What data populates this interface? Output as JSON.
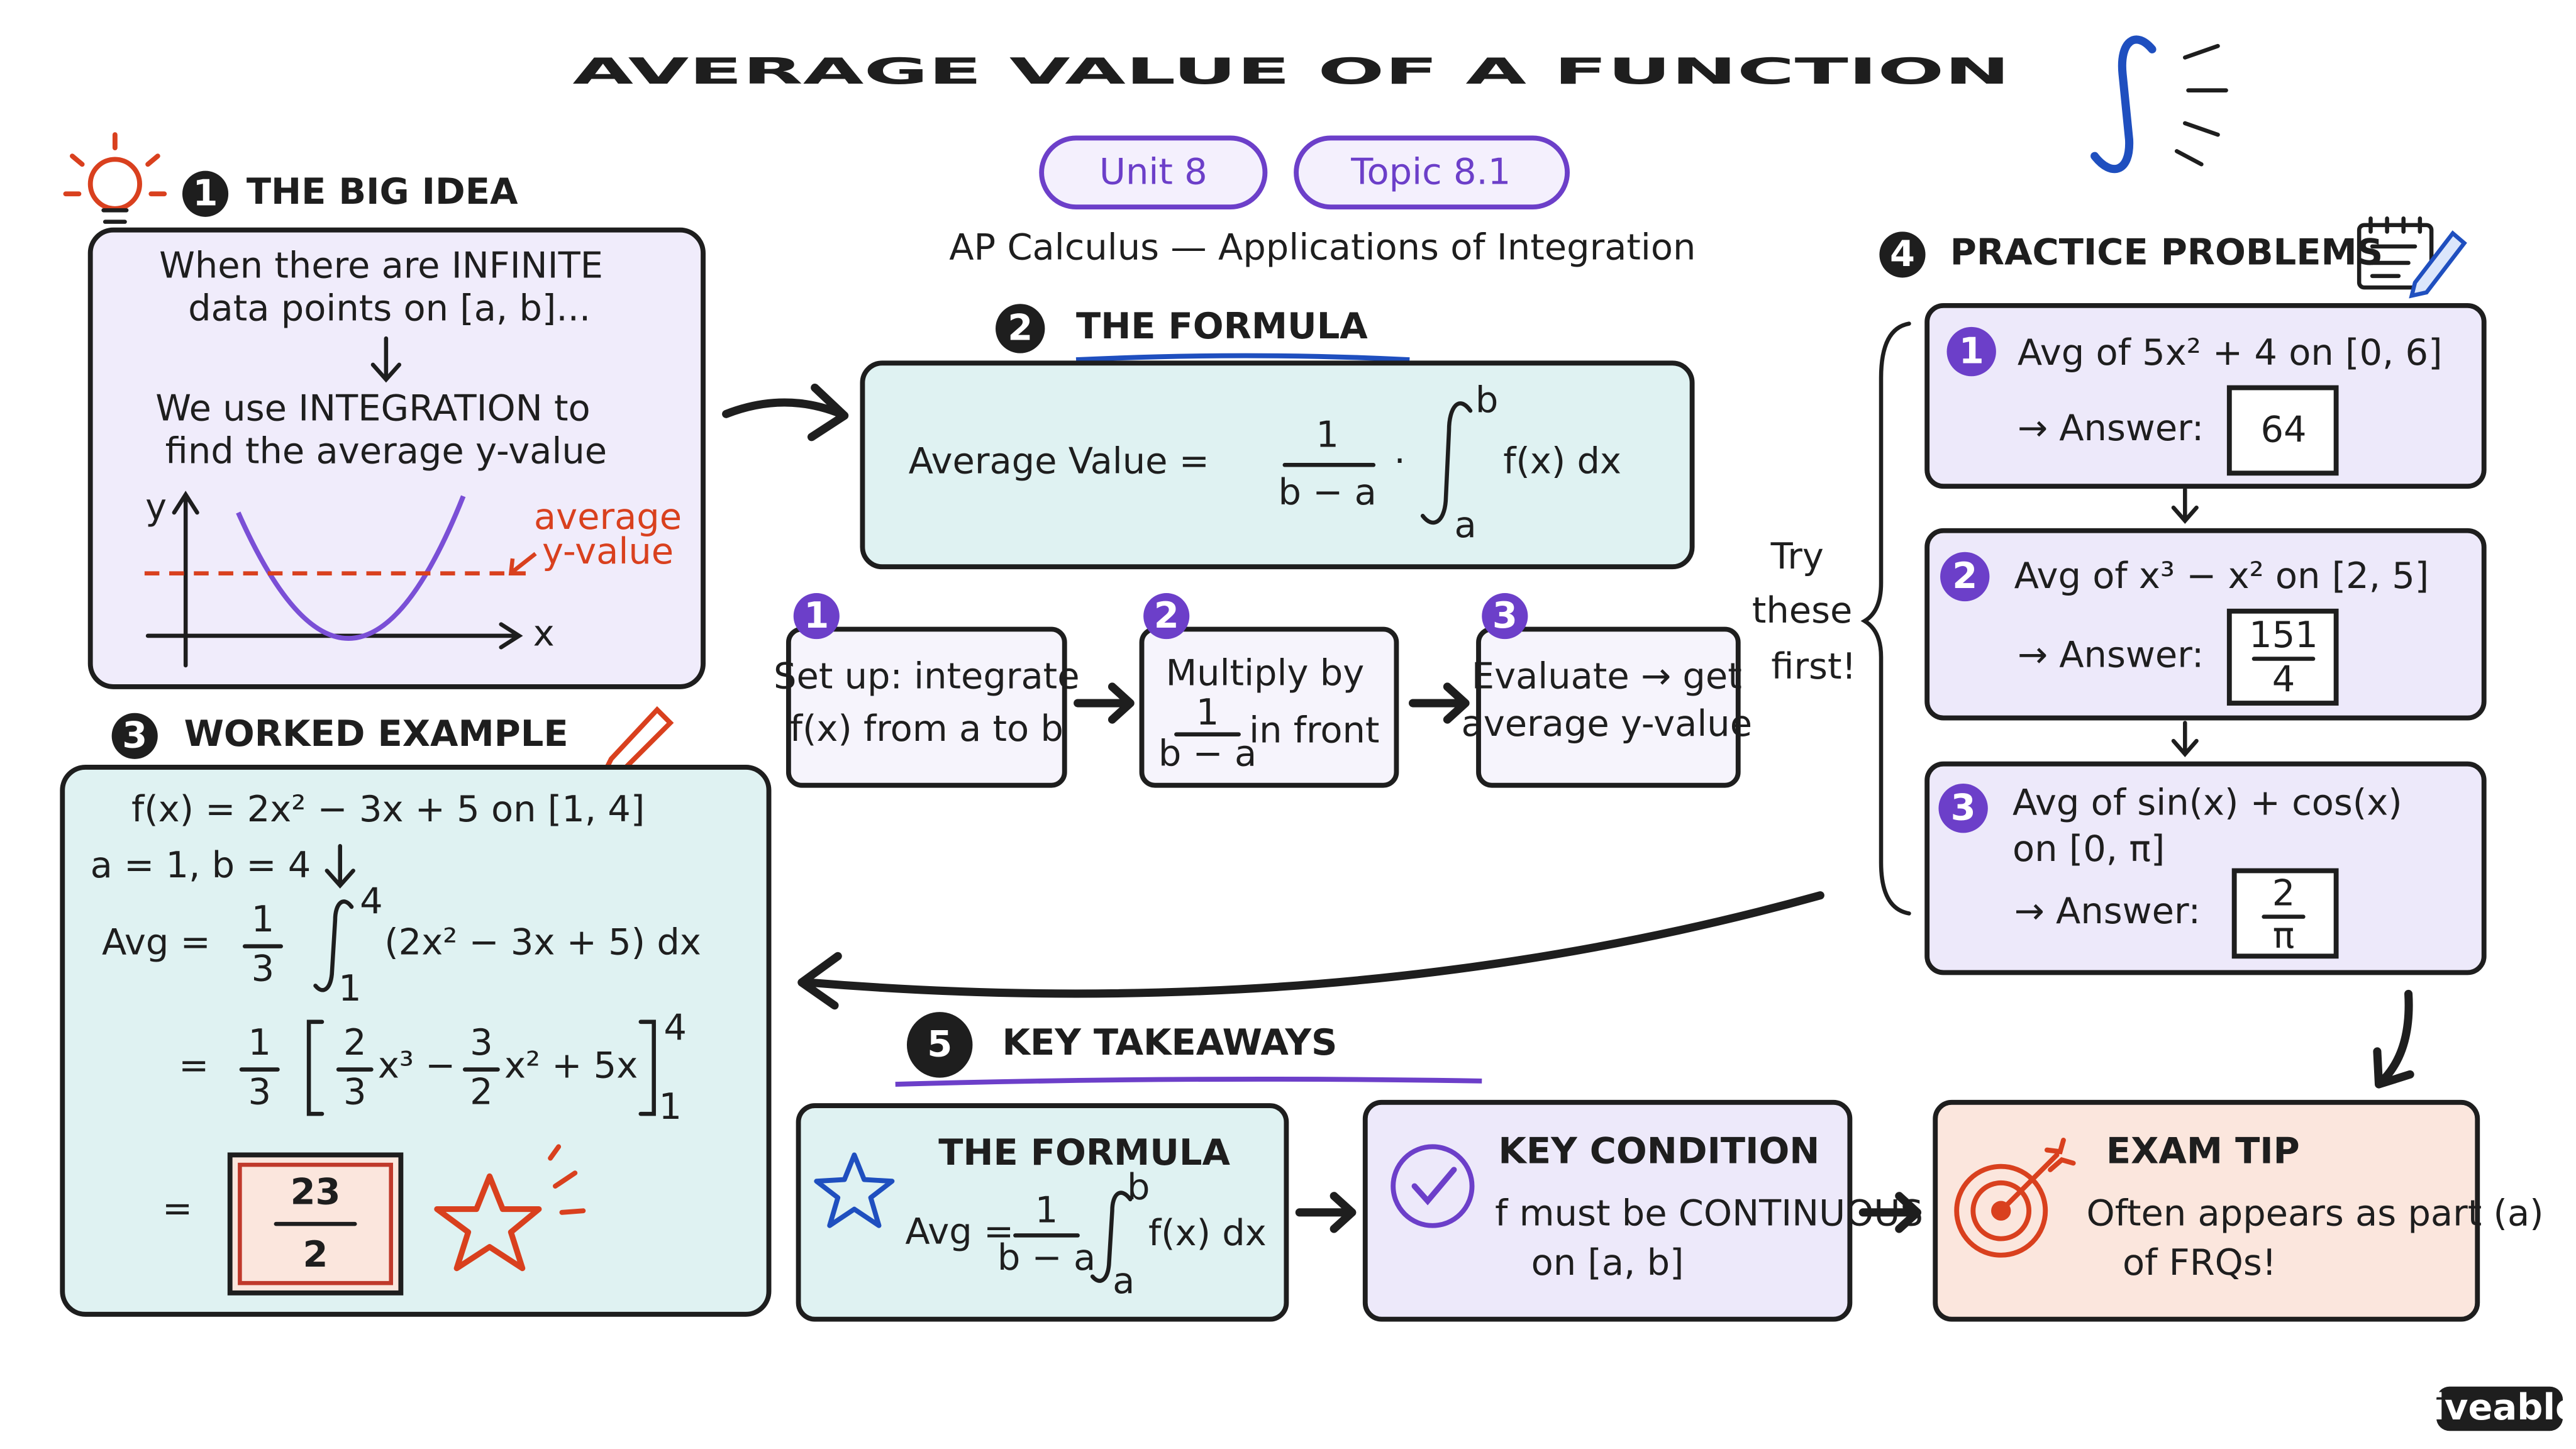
{
  "header": {
    "title": "AVERAGE VALUE OF A FUNCTION",
    "badges": [
      "Unit 8",
      "Topic 8.1"
    ],
    "subtitle": "AP Calculus — Applications of Integration"
  },
  "big_idea": {
    "number": "1",
    "heading": "THE BIG IDEA",
    "lines": [
      "When there are INFINITE",
      "data points on [a, b]...",
      "We use INTEGRATION to",
      "find the average y-value"
    ],
    "graph": {
      "y_label": "y",
      "x_label": "x",
      "annotation": [
        "average",
        "y-value"
      ]
    }
  },
  "formula": {
    "number": "2",
    "heading": "THE FORMULA",
    "lhs": "Average Value =",
    "frac_num": "1",
    "frac_den": "b − a",
    "dot": "·",
    "upper": "b",
    "lower": "a",
    "integrand": "f(x) dx"
  },
  "steps": [
    {
      "number": "1",
      "lines": [
        "Set up: integrate",
        "f(x) from a to b"
      ]
    },
    {
      "number": "2",
      "text": "Multiply by",
      "frac_num": "1",
      "frac_den": "b − a",
      "after": "in front"
    },
    {
      "number": "3",
      "lines": [
        "Evaluate → get",
        "average y-value"
      ]
    }
  ],
  "worked_example": {
    "number": "3",
    "heading": "WORKED EXAMPLE",
    "function": "f(x) = 2x² − 3x + 5  on  [1, 4]",
    "bounds": "a = 1, b = 4",
    "line1": {
      "lhs": "Avg =",
      "coef_num": "1",
      "coef_den": "3",
      "upper": "4",
      "lower": "1",
      "integrand": "(2x² − 3x + 5) dx"
    },
    "line2": {
      "eq": "=",
      "coef_num": "1",
      "coef_den": "3",
      "t1_num": "2",
      "t1_den": "3",
      "t1": "x³ −",
      "t2_num": "3",
      "t2_den": "2",
      "t2": "x² + 5x",
      "upper": "4",
      "lower": "1"
    },
    "line3": {
      "eq": "=",
      "result_num": "23",
      "result_den": "2"
    }
  },
  "practice": {
    "number": "4",
    "heading": "PRACTICE PROBLEMS",
    "side_note": [
      "Try",
      "these",
      "first!"
    ],
    "problems": [
      {
        "number": "1",
        "question": [
          "Avg of 5x² + 4 on [0, 6]"
        ],
        "answer_label": "→ Answer:",
        "answer": "64"
      },
      {
        "number": "2",
        "question": [
          "Avg of x³ − x² on [2, 5]"
        ],
        "answer_label": "→ Answer:",
        "answer_num": "151",
        "answer_den": "4"
      },
      {
        "number": "3",
        "question": [
          "Avg of sin(x) + cos(x)",
          "on [0, π]"
        ],
        "answer_label": "→ Answer:",
        "answer_num": "2",
        "answer_den": "π"
      }
    ]
  },
  "takeaways": {
    "number": "5",
    "heading": "KEY TAKEAWAYS",
    "formula_card": {
      "title": "THE FORMULA",
      "lhs": "Avg =",
      "frac_num": "1",
      "frac_den": "b − a",
      "upper": "b",
      "lower": "a",
      "integrand": "f(x) dx"
    },
    "condition_card": {
      "title": "KEY CONDITION",
      "lines": [
        "f must be CONTINUOUS",
        "on [a, b]"
      ]
    },
    "tip_card": {
      "title": "EXAM TIP",
      "lines": [
        "Often appears as part (a)",
        "of FRQs!"
      ]
    }
  },
  "brand": "fiveable"
}
